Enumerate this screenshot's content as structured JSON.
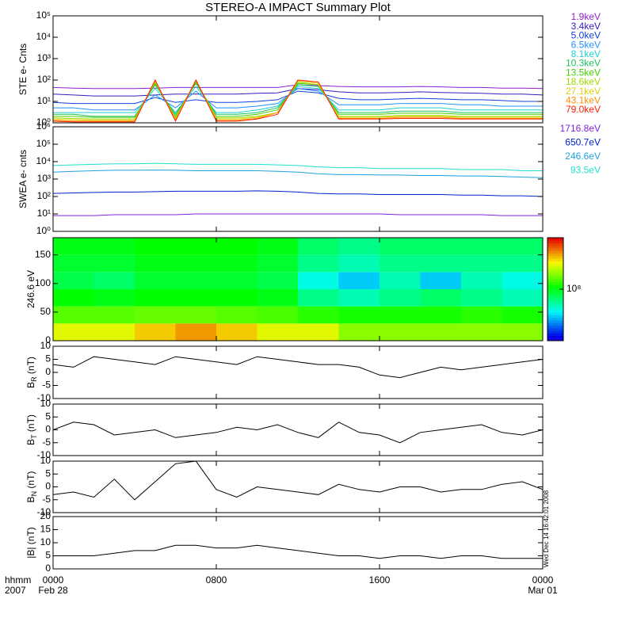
{
  "title": "STEREO-A IMPACT Summary Plot",
  "timestamp": "Wed Dec 14 16:42:01 2008",
  "x_axis": {
    "xlim": [
      0,
      24
    ],
    "xticks": [
      {
        "value": 0,
        "label": "0000"
      },
      {
        "value": 8,
        "label": "0800"
      },
      {
        "value": 16,
        "label": "1600"
      },
      {
        "value": 24,
        "label": "0000"
      }
    ],
    "date_labels": [
      {
        "value": 0,
        "label": "Feb 28"
      },
      {
        "value": 24,
        "label": "Mar 01"
      }
    ],
    "corner_labels": [
      "hhmm",
      "2007"
    ],
    "x": [
      0,
      1,
      2,
      3,
      4,
      5,
      6,
      7,
      8,
      9,
      10,
      11,
      12,
      13,
      14,
      15,
      16,
      17,
      18,
      19,
      20,
      21,
      22,
      23,
      24
    ]
  },
  "chart_data": [
    {
      "type": "line",
      "ylabel": "STE e- Cnts",
      "log": true,
      "ylim": [
        1,
        100000
      ],
      "yticks": [
        {
          "value": 1,
          "label": "10⁰"
        },
        {
          "value": 10,
          "label": "10¹"
        },
        {
          "value": 100,
          "label": "10²"
        },
        {
          "value": 1000,
          "label": "10³"
        },
        {
          "value": 10000,
          "label": "10⁴"
        },
        {
          "value": 100000,
          "label": "10⁵"
        }
      ],
      "series": [
        {
          "name": "1.9keV",
          "color": "#9020d0",
          "values": [
            45,
            42,
            40,
            40,
            40,
            42,
            45,
            45,
            45,
            45,
            45,
            45,
            60,
            55,
            50,
            48,
            48,
            48,
            50,
            48,
            45,
            45,
            42,
            42,
            40
          ]
        },
        {
          "name": "3.4keV",
          "color": "#3020c0",
          "values": [
            22,
            20,
            18,
            18,
            18,
            20,
            22,
            22,
            22,
            22,
            24,
            25,
            40,
            35,
            28,
            25,
            25,
            26,
            28,
            26,
            25,
            24,
            22,
            22,
            20
          ]
        },
        {
          "name": "5.0keV",
          "color": "#1040e0",
          "values": [
            9,
            8,
            8,
            8,
            8,
            15,
            9,
            12,
            9,
            9,
            10,
            12,
            30,
            25,
            14,
            12,
            12,
            13,
            14,
            13,
            12,
            12,
            11,
            10,
            10
          ]
        },
        {
          "name": "6.5keV",
          "color": "#2090ff",
          "values": [
            5,
            5,
            4,
            4,
            4,
            20,
            5,
            30,
            5,
            5,
            6,
            8,
            40,
            30,
            7,
            7,
            7,
            8,
            8,
            8,
            7,
            7,
            6,
            6,
            6
          ]
        },
        {
          "name": "8.1keV",
          "color": "#20d0d0",
          "values": [
            3,
            3,
            3,
            3,
            3,
            40,
            3,
            50,
            3,
            3,
            4,
            6,
            50,
            40,
            4,
            4,
            4,
            5,
            5,
            5,
            4,
            4,
            4,
            4,
            4
          ]
        },
        {
          "name": "10.3keV",
          "color": "#20c060",
          "values": [
            2.5,
            2.5,
            2,
            2,
            2,
            60,
            2.5,
            70,
            2.5,
            2.5,
            3,
            5,
            60,
            50,
            3,
            3,
            3,
            3.5,
            3.5,
            3.5,
            3,
            3,
            3,
            3,
            3
          ]
        },
        {
          "name": "13.5keV",
          "color": "#40d000",
          "values": [
            2,
            2,
            1.8,
            1.8,
            1.8,
            70,
            2,
            80,
            2,
            2,
            2.5,
            4,
            70,
            60,
            2.5,
            2.5,
            2.5,
            2.8,
            2.8,
            2.8,
            2.5,
            2.5,
            2.5,
            2.5,
            2.5
          ]
        },
        {
          "name": "18.6keV",
          "color": "#a0d800",
          "values": [
            1.7,
            1.6,
            1.5,
            1.5,
            1.5,
            80,
            1.7,
            90,
            1.7,
            1.7,
            2,
            3,
            80,
            60,
            2,
            2,
            2,
            2.2,
            2.2,
            2.2,
            2,
            2,
            2,
            2,
            2
          ]
        },
        {
          "name": "27.1keV",
          "color": "#e0d000",
          "values": [
            1.5,
            1.4,
            1.3,
            1.3,
            1.3,
            90,
            1.5,
            100,
            1.5,
            1.5,
            1.8,
            3,
            90,
            70,
            1.8,
            1.8,
            1.8,
            2,
            2,
            2,
            1.8,
            1.8,
            1.8,
            1.8,
            1.8
          ]
        },
        {
          "name": "43.1keV",
          "color": "#ff9000",
          "values": [
            1.3,
            1.2,
            1.2,
            1.2,
            1.2,
            100,
            1.3,
            100,
            1.3,
            1.3,
            1.6,
            3,
            100,
            80,
            1.6,
            1.6,
            1.6,
            1.8,
            1.8,
            1.8,
            1.6,
            1.6,
            1.6,
            1.6,
            1.6
          ]
        },
        {
          "name": "79.0keV",
          "color": "#ff2000",
          "values": [
            1.2,
            1.1,
            1.1,
            1.1,
            1.1,
            100,
            1.2,
            100,
            1.2,
            1.2,
            1.5,
            2.5,
            100,
            80,
            1.5,
            1.5,
            1.5,
            1.6,
            1.6,
            1.6,
            1.5,
            1.5,
            1.5,
            1.5,
            1.5
          ]
        }
      ]
    },
    {
      "type": "line",
      "ylabel": "SWEA e- cnts",
      "log": true,
      "ylim": [
        1,
        1000000
      ],
      "yticks": [
        {
          "value": 1,
          "label": "10⁰"
        },
        {
          "value": 10,
          "label": "10¹"
        },
        {
          "value": 100,
          "label": "10²"
        },
        {
          "value": 1000,
          "label": "10³"
        },
        {
          "value": 10000,
          "label": "10⁴"
        },
        {
          "value": 100000,
          "label": "10⁵"
        },
        {
          "value": 1000000,
          "label": "10⁶"
        }
      ],
      "series": [
        {
          "name": "1716.8eV",
          "color": "#8020e0",
          "values": [
            8,
            8,
            8,
            9,
            9,
            9,
            9,
            10,
            10,
            10,
            10,
            10,
            10,
            10,
            10,
            10,
            10,
            9,
            9,
            9,
            9,
            9,
            8,
            8,
            8
          ]
        },
        {
          "name": "650.7eV",
          "color": "#0020d0",
          "values": [
            150,
            160,
            170,
            180,
            180,
            190,
            200,
            200,
            200,
            200,
            210,
            200,
            180,
            150,
            140,
            140,
            130,
            130,
            130,
            130,
            120,
            120,
            110,
            110,
            100
          ]
        },
        {
          "name": "246.6eV",
          "color": "#20a0e0",
          "values": [
            2500,
            2800,
            3000,
            3200,
            3200,
            3300,
            3200,
            3000,
            3000,
            3000,
            3000,
            2800,
            2500,
            2000,
            1800,
            1800,
            1700,
            1700,
            1600,
            1600,
            1500,
            1500,
            1400,
            1300,
            1200
          ]
        },
        {
          "name": "93.5eV",
          "color": "#20e0d0",
          "values": [
            6000,
            6500,
            7000,
            7500,
            7500,
            8000,
            7500,
            7000,
            7000,
            7000,
            7000,
            6500,
            6000,
            5000,
            4500,
            4500,
            4000,
            4000,
            4000,
            4000,
            3500,
            3500,
            3500,
            3000,
            3000
          ]
        }
      ]
    },
    {
      "type": "heatmap",
      "ylabel": "246.6 eV",
      "log": false,
      "ylim": [
        0,
        180
      ],
      "yticks": [
        0,
        50,
        100,
        150
      ],
      "x_edges": [
        0,
        2,
        4,
        6,
        8,
        10,
        12,
        14,
        16,
        18,
        20,
        22,
        24
      ],
      "y_edges": [
        0,
        30,
        60,
        90,
        120,
        150,
        180
      ],
      "zlim": [
        10000000,
        1000000000
      ],
      "zticks": [
        {
          "value": 100000000,
          "label": "10⁸"
        }
      ],
      "z": [
        [
          300000000.0,
          300000000.0,
          400000000.0,
          500000000.0,
          400000000.0,
          300000000.0,
          300000000.0,
          200000000.0,
          200000000.0,
          200000000.0,
          200000000.0,
          200000000.0
        ],
        [
          160000000.0,
          160000000.0,
          170000000.0,
          170000000.0,
          160000000.0,
          150000000.0,
          130000000.0,
          120000000.0,
          120000000.0,
          120000000.0,
          130000000.0,
          120000000.0
        ],
        [
          110000000.0,
          100000000.0,
          110000000.0,
          110000000.0,
          110000000.0,
          100000000.0,
          60000000.0,
          50000000.0,
          60000000.0,
          70000000.0,
          60000000.0,
          50000000.0
        ],
        [
          80000000.0,
          70000000.0,
          90000000.0,
          90000000.0,
          90000000.0,
          80000000.0,
          40000000.0,
          30000000.0,
          50000000.0,
          30000000.0,
          50000000.0,
          40000000.0
        ],
        [
          90000000.0,
          90000000.0,
          100000000.0,
          100000000.0,
          100000000.0,
          90000000.0,
          60000000.0,
          50000000.0,
          60000000.0,
          60000000.0,
          60000000.0,
          60000000.0
        ],
        [
          100000000.0,
          100000000.0,
          110000000.0,
          110000000.0,
          110000000.0,
          100000000.0,
          70000000.0,
          60000000.0,
          70000000.0,
          70000000.0,
          70000000.0,
          70000000.0
        ]
      ]
    },
    {
      "type": "line",
      "ylabel": {
        "main": "B",
        "sub": "R",
        "rest": " (nT)"
      },
      "log": false,
      "ylim": [
        -10,
        10
      ],
      "yticks": [
        -10,
        -5,
        0,
        5,
        10
      ],
      "series": [
        {
          "color": "#000000",
          "values": [
            3,
            2,
            6,
            5,
            4,
            3,
            6,
            5,
            4,
            3,
            6,
            5,
            4,
            3,
            3,
            2,
            -1,
            -2,
            0,
            2,
            1,
            2,
            3,
            4,
            5
          ]
        }
      ]
    },
    {
      "type": "line",
      "ylabel": {
        "main": "B",
        "sub": "T",
        "rest": " (nT)"
      },
      "log": false,
      "ylim": [
        -10,
        10
      ],
      "yticks": [
        -10,
        -5,
        0,
        5,
        10
      ],
      "series": [
        {
          "color": "#000000",
          "values": [
            0,
            3,
            2,
            -2,
            -1,
            0,
            -3,
            -2,
            -1,
            1,
            0,
            2,
            -1,
            -3,
            3,
            -1,
            -2,
            -5,
            -1,
            0,
            1,
            2,
            -1,
            -2,
            0
          ]
        }
      ]
    },
    {
      "type": "line",
      "ylabel": {
        "main": "B",
        "sub": "N",
        "rest": " (nT)"
      },
      "log": false,
      "ylim": [
        -10,
        10
      ],
      "yticks": [
        -10,
        -5,
        0,
        5,
        10
      ],
      "series": [
        {
          "color": "#000000",
          "values": [
            -3,
            -2,
            -4,
            3,
            -5,
            2,
            9,
            10,
            -1,
            -4,
            0,
            -1,
            -2,
            -3,
            1,
            -1,
            -2,
            0,
            0,
            -2,
            -1,
            -1,
            1,
            2,
            -1
          ]
        }
      ]
    },
    {
      "type": "line",
      "ylabel": "|B| (nT)",
      "log": false,
      "ylim": [
        0,
        20
      ],
      "yticks": [
        0,
        5,
        10,
        15,
        20
      ],
      "series": [
        {
          "color": "#000000",
          "values": [
            5,
            5,
            5,
            6,
            7,
            7,
            9,
            9,
            8,
            8,
            9,
            8,
            7,
            6,
            5,
            5,
            4,
            5,
            5,
            4,
            5,
            5,
            4,
            4,
            4
          ]
        }
      ]
    }
  ]
}
